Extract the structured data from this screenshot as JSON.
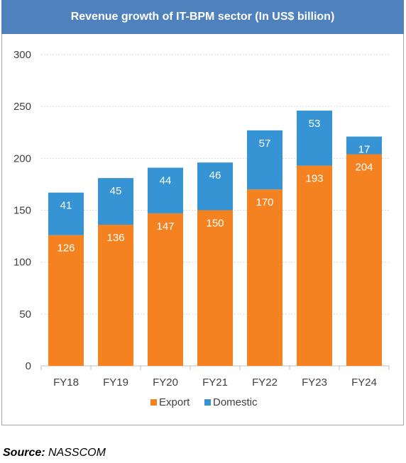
{
  "chart_data": {
    "type": "bar",
    "stacked": true,
    "title": "Revenue growth of IT-BPM sector (In US$ billion)",
    "categories": [
      "FY18",
      "FY19",
      "FY20",
      "FY21",
      "FY22",
      "FY23",
      "FY24"
    ],
    "series": [
      {
        "name": "Export",
        "color": "#f58220",
        "values": [
          126,
          136,
          147,
          150,
          170,
          193,
          204
        ]
      },
      {
        "name": "Domestic",
        "color": "#3694d4",
        "values": [
          41,
          45,
          44,
          46,
          57,
          53,
          17
        ]
      }
    ],
    "ylim": [
      0,
      300
    ],
    "yticks": [
      0,
      50,
      100,
      150,
      200,
      250,
      300
    ],
    "grid": true,
    "legend": "bottom"
  },
  "source": {
    "label": "Source:",
    "value": "NASSCOM"
  }
}
